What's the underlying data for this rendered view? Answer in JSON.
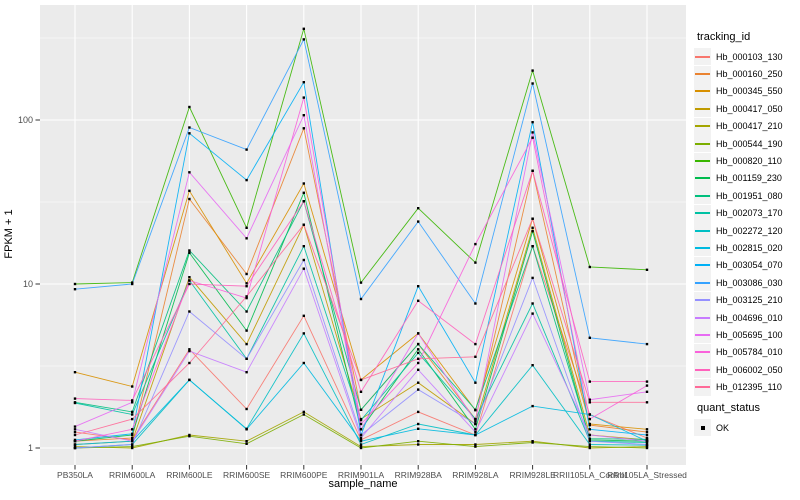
{
  "chart_data": {
    "type": "line",
    "title": "",
    "xlabel": "sample_name",
    "ylabel": "FPKM + 1",
    "y_scale": "log10",
    "y_ticks": [
      1,
      10,
      100
    ],
    "ylim": [
      1,
      370
    ],
    "grid": true,
    "legend_position": "right",
    "legend_title": "tracking_id",
    "legend2_title": "quant_status",
    "legend2_items": [
      "OK"
    ],
    "marker": "black-square",
    "colors": {
      "panel_bg": "#EBEBEB",
      "grid": "#FFFFFF",
      "tick": "#333333",
      "tick_label": "#4D4D4D",
      "axis_title": "#000000",
      "marker": "#000000",
      "legend_key_bg": "#F2F2F2"
    },
    "x_categories": [
      "PB350LA",
      "RRIM600LA",
      "RRIM600LE",
      "RRIM600SE",
      "RRIM600PE",
      "RRIM901LA",
      "RRIM928BA",
      "RRIM928LA",
      "RRIM928LE",
      "RRII105LA_Control",
      "RRII105LA_Stressed"
    ],
    "series": [
      {
        "name": "Hb_000103_130",
        "color": "#F8766D",
        "values": [
          1.25,
          1.12,
          4.0,
          1.73,
          6.4,
          1.12,
          1.66,
          1.2,
          17,
          1.6,
          1.15
        ]
      },
      {
        "name": "Hb_000160_250",
        "color": "#EA8331",
        "values": [
          1.1,
          1.15,
          33,
          11.5,
          89,
          1.71,
          4.3,
          1.5,
          49,
          1.38,
          1.25
        ]
      },
      {
        "name": "Hb_000345_550",
        "color": "#D89000",
        "values": [
          2.9,
          2.37,
          37,
          10.1,
          41,
          2.6,
          5.0,
          1.7,
          25,
          1.4,
          1.3
        ]
      },
      {
        "name": "Hb_000417_050",
        "color": "#C09B00",
        "values": [
          1.05,
          1.1,
          11,
          4.3,
          23,
          1.5,
          2.5,
          1.4,
          22,
          1.2,
          1.12
        ]
      },
      {
        "name": "Hb_000417_210",
        "color": "#A3A500",
        "values": [
          1.02,
          1.0,
          1.2,
          1.1,
          1.66,
          1.02,
          1.05,
          1.05,
          1.1,
          1.0,
          1.02
        ]
      },
      {
        "name": "Hb_000544_190",
        "color": "#7CAE00",
        "values": [
          1.0,
          1.02,
          1.18,
          1.06,
          1.6,
          1.0,
          1.1,
          1.02,
          1.08,
          1.02,
          1.0
        ]
      },
      {
        "name": "Hb_000820_110",
        "color": "#39B600",
        "values": [
          10,
          10.2,
          120,
          22,
          360,
          10.2,
          29,
          13.5,
          200,
          12.7,
          12.2
        ]
      },
      {
        "name": "Hb_001159_230",
        "color": "#00BB4E",
        "values": [
          1.1,
          1.2,
          15.5,
          5.2,
          36,
          1.3,
          4.0,
          1.3,
          21,
          1.12,
          1.1
        ]
      },
      {
        "name": "Hb_001951_080",
        "color": "#00BF7D",
        "values": [
          1.9,
          1.66,
          16,
          6.8,
          32,
          1.71,
          4.3,
          1.71,
          17,
          1.14,
          1.13
        ]
      },
      {
        "name": "Hb_002073_170",
        "color": "#00C1A3",
        "values": [
          1.88,
          1.6,
          10.5,
          3.5,
          17,
          1.48,
          3.8,
          1.5,
          7.6,
          1.1,
          1.08
        ]
      },
      {
        "name": "Hb_002272_120",
        "color": "#00BFC4",
        "values": [
          1.0,
          1.05,
          2.6,
          1.31,
          5.0,
          1.05,
          1.4,
          1.2,
          3.2,
          1.05,
          1.04
        ]
      },
      {
        "name": "Hb_002815_020",
        "color": "#00BAE0",
        "values": [
          1.05,
          1.1,
          2.6,
          1.3,
          3.3,
          1.1,
          1.31,
          1.2,
          1.8,
          1.6,
          1.1
        ]
      },
      {
        "name": "Hb_003054_070",
        "color": "#00B0F6",
        "values": [
          1.12,
          1.22,
          83,
          43,
          170,
          1.2,
          9.7,
          2.5,
          97,
          1.3,
          1.2
        ]
      },
      {
        "name": "Hb_003086_030",
        "color": "#35A2FF",
        "values": [
          9.3,
          10,
          90,
          66,
          310,
          8.1,
          24,
          7.6,
          167,
          4.7,
          4.3
        ]
      },
      {
        "name": "Hb_003125_210",
        "color": "#9590FF",
        "values": [
          1.0,
          1.05,
          6.8,
          3.5,
          14,
          1.2,
          2.27,
          1.4,
          10.9,
          1.1,
          1.05
        ]
      },
      {
        "name": "Hb_004696_010",
        "color": "#C77CFF",
        "values": [
          1.3,
          1.1,
          3.9,
          2.9,
          12.4,
          1.15,
          3.0,
          1.25,
          6.6,
          1.2,
          1.1
        ]
      },
      {
        "name": "Hb_005695_100",
        "color": "#E76BF3",
        "values": [
          1.35,
          1.9,
          48,
          19,
          107,
          1.3,
          5.0,
          1.45,
          84,
          1.97,
          2.2
        ]
      },
      {
        "name": "Hb_005784_010",
        "color": "#FA62DB",
        "values": [
          1.1,
          1.3,
          10.5,
          8.2,
          137,
          1.4,
          3.3,
          17.5,
          78,
          1.5,
          2.4
        ]
      },
      {
        "name": "Hb_006002_050",
        "color": "#FF62BC",
        "values": [
          2.0,
          1.95,
          10,
          9.7,
          32,
          2.2,
          7.9,
          4.3,
          49,
          2.54,
          2.54
        ]
      },
      {
        "name": "Hb_012395_110",
        "color": "#FF6A98",
        "values": [
          1.2,
          1.5,
          3.3,
          8.4,
          23,
          2.6,
          3.5,
          3.6,
          25,
          1.9,
          1.9
        ]
      }
    ]
  }
}
